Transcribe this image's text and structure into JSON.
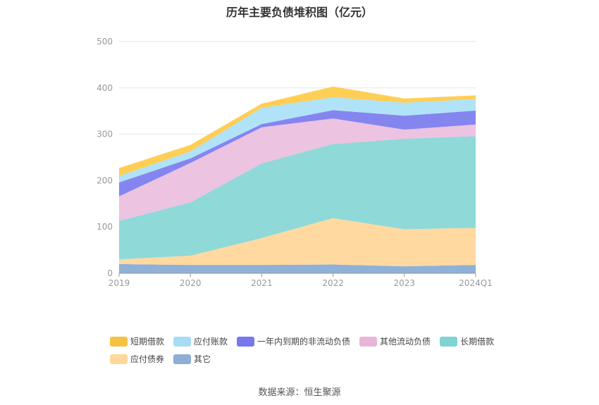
{
  "chart_data": {
    "type": "area",
    "title": "历年主要负债堆积图（亿元）",
    "xlabel": "",
    "ylabel": "",
    "ylim": [
      0,
      500
    ],
    "yticks": [
      0,
      100,
      200,
      300,
      400,
      500
    ],
    "grid": true,
    "stacked": true,
    "legend_position": "bottom",
    "categories": [
      "2019",
      "2020",
      "2021",
      "2022",
      "2023",
      "2024Q1"
    ],
    "series": [
      {
        "name": "其它",
        "color": "#8fb0d8",
        "values": [
          20,
          18,
          18,
          19,
          15,
          18
        ]
      },
      {
        "name": "应付债券",
        "color": "#ffd9a0",
        "values": [
          10,
          20,
          58,
          100,
          80,
          80
        ]
      },
      {
        "name": "长期借款",
        "color": "#8fd9d9",
        "values": [
          83,
          115,
          161,
          160,
          195,
          198
        ]
      },
      {
        "name": "其他流动负债",
        "color": "#ecc3e0",
        "values": [
          53,
          85,
          78,
          55,
          20,
          25
        ]
      },
      {
        "name": "一年内到期的非流动负债",
        "color": "#8585f0",
        "values": [
          30,
          10,
          7,
          18,
          30,
          30
        ]
      },
      {
        "name": "应付账款",
        "color": "#b0e2f8",
        "values": [
          14,
          15,
          35,
          28,
          28,
          25
        ]
      },
      {
        "name": "短期借款",
        "color": "#ffce55",
        "values": [
          17,
          14,
          9,
          23,
          9,
          8
        ]
      }
    ]
  },
  "legend": {
    "rows": [
      [
        {
          "label": "短期借款",
          "color": "#f5c242"
        },
        {
          "label": "应付账款",
          "color": "#a8dcf5"
        },
        {
          "label": "一年内到期的非流动负债",
          "color": "#7777ee"
        },
        {
          "label": "其他流动负债",
          "color": "#e8b5d8"
        },
        {
          "label": "长期借款",
          "color": "#7fd3d3"
        }
      ],
      [
        {
          "label": "应付债券",
          "color": "#ffd89a"
        },
        {
          "label": "其它",
          "color": "#8eaed6"
        }
      ]
    ]
  },
  "source": "数据来源：恒生聚源"
}
